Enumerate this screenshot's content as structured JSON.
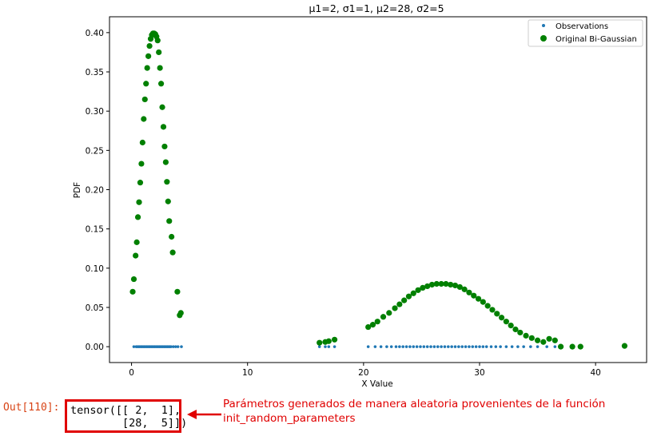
{
  "cell": {
    "prompt": "Out[110]:",
    "output_line1": "tensor([[ 2,  1],",
    "output_line2": "        [28,  5]])"
  },
  "annotation": {
    "line1": "Parámetros generados de manera aleatoria provenientes de la función",
    "line2": "init_random_parameters",
    "color": "#e00000"
  },
  "chart_data": {
    "type": "scatter",
    "title": "μ1=2, σ1=1, μ2=28, σ2=5",
    "xlabel": "X Value",
    "ylabel": "PDF",
    "xlim": [
      -1.9,
      44.4
    ],
    "ylim": [
      -0.0202,
      0.4202
    ],
    "xticks": [
      0,
      10,
      20,
      30,
      40
    ],
    "yticks": [
      0.0,
      0.05,
      0.1,
      0.15,
      0.2,
      0.25,
      0.3,
      0.35,
      0.4
    ],
    "xtick_labels": [
      "0",
      "10",
      "20",
      "30",
      "40"
    ],
    "ytick_labels": [
      "0.00",
      "0.05",
      "0.10",
      "0.15",
      "0.20",
      "0.25",
      "0.30",
      "0.35",
      "0.40"
    ],
    "grid": false,
    "legend_position": "top-right",
    "legend": [
      "Observations",
      "Original Bi-Gaussian"
    ],
    "colors": {
      "observations": "#1f77b4",
      "bigaussian": "#008000"
    },
    "series": [
      {
        "name": "Observations",
        "x": [
          0.2,
          0.4,
          0.5,
          0.6,
          0.7,
          0.8,
          0.9,
          1.0,
          1.1,
          1.2,
          1.3,
          1.4,
          1.5,
          1.6,
          1.7,
          1.8,
          1.9,
          2.0,
          2.1,
          2.2,
          2.3,
          2.4,
          2.5,
          2.6,
          2.7,
          2.8,
          2.9,
          3.0,
          3.1,
          3.2,
          3.3,
          3.4,
          3.6,
          3.8,
          4.0,
          4.3,
          16.2,
          16.7,
          17.0,
          17.5,
          20.4,
          21.0,
          21.5,
          22.0,
          22.4,
          22.8,
          23.1,
          23.4,
          23.7,
          24.0,
          24.3,
          24.6,
          24.9,
          25.2,
          25.5,
          25.8,
          26.1,
          26.4,
          26.7,
          27.0,
          27.3,
          27.6,
          27.9,
          28.2,
          28.5,
          28.8,
          29.1,
          29.4,
          29.7,
          30.0,
          30.3,
          30.6,
          31.0,
          31.4,
          31.8,
          32.3,
          32.8,
          33.3,
          33.8,
          34.4,
          35.0,
          35.8,
          36.5,
          37.0,
          38.0,
          38.7
        ],
        "y": [
          0,
          0,
          0,
          0,
          0,
          0,
          0,
          0,
          0,
          0,
          0,
          0,
          0,
          0,
          0,
          0,
          0,
          0,
          0,
          0,
          0,
          0,
          0,
          0,
          0,
          0,
          0,
          0,
          0,
          0,
          0,
          0,
          0,
          0,
          0,
          0,
          0,
          0,
          0,
          0,
          0,
          0,
          0,
          0,
          0,
          0,
          0,
          0,
          0,
          0,
          0,
          0,
          0,
          0,
          0,
          0,
          0,
          0,
          0,
          0,
          0,
          0,
          0,
          0,
          0,
          0,
          0,
          0,
          0,
          0,
          0,
          0,
          0,
          0,
          0,
          0,
          0,
          0,
          0,
          0,
          0,
          0,
          0,
          0,
          0,
          0
        ]
      },
      {
        "name": "Original Bi-Gaussian",
        "x": [
          0.1,
          0.2,
          0.35,
          0.45,
          0.55,
          0.65,
          0.75,
          0.85,
          0.95,
          1.05,
          1.15,
          1.25,
          1.35,
          1.45,
          1.55,
          1.65,
          1.75,
          1.85,
          1.95,
          2.05,
          2.15,
          2.25,
          2.35,
          2.45,
          2.55,
          2.65,
          2.75,
          2.85,
          2.95,
          3.05,
          3.15,
          3.25,
          3.45,
          3.55,
          3.95,
          4.15,
          4.25,
          16.2,
          16.7,
          17.0,
          17.5,
          20.4,
          20.8,
          21.2,
          21.7,
          22.2,
          22.7,
          23.1,
          23.5,
          23.9,
          24.3,
          24.7,
          25.1,
          25.5,
          25.9,
          26.3,
          26.7,
          27.1,
          27.5,
          27.9,
          28.3,
          28.7,
          29.1,
          29.5,
          29.9,
          30.3,
          30.7,
          31.1,
          31.5,
          31.9,
          32.3,
          32.7,
          33.1,
          33.5,
          34.0,
          34.5,
          35.0,
          35.5,
          36.0,
          36.5,
          37.0,
          38.0,
          38.7,
          42.5
        ],
        "y": [
          0.07,
          0.086,
          0.116,
          0.133,
          0.165,
          0.184,
          0.209,
          0.233,
          0.26,
          0.29,
          0.315,
          0.335,
          0.355,
          0.37,
          0.383,
          0.392,
          0.397,
          0.399,
          0.399,
          0.398,
          0.395,
          0.39,
          0.375,
          0.355,
          0.335,
          0.305,
          0.28,
          0.255,
          0.235,
          0.21,
          0.185,
          0.16,
          0.14,
          0.12,
          0.07,
          0.04,
          0.043,
          0.005,
          0.006,
          0.007,
          0.009,
          0.025,
          0.028,
          0.032,
          0.038,
          0.043,
          0.049,
          0.054,
          0.059,
          0.064,
          0.068,
          0.072,
          0.075,
          0.077,
          0.079,
          0.08,
          0.08,
          0.08,
          0.079,
          0.078,
          0.076,
          0.073,
          0.069,
          0.065,
          0.061,
          0.057,
          0.052,
          0.047,
          0.042,
          0.037,
          0.032,
          0.027,
          0.022,
          0.018,
          0.014,
          0.011,
          0.008,
          0.006,
          0.01,
          0.008,
          0.0,
          0.0,
          0.0,
          0.001
        ]
      }
    ]
  }
}
